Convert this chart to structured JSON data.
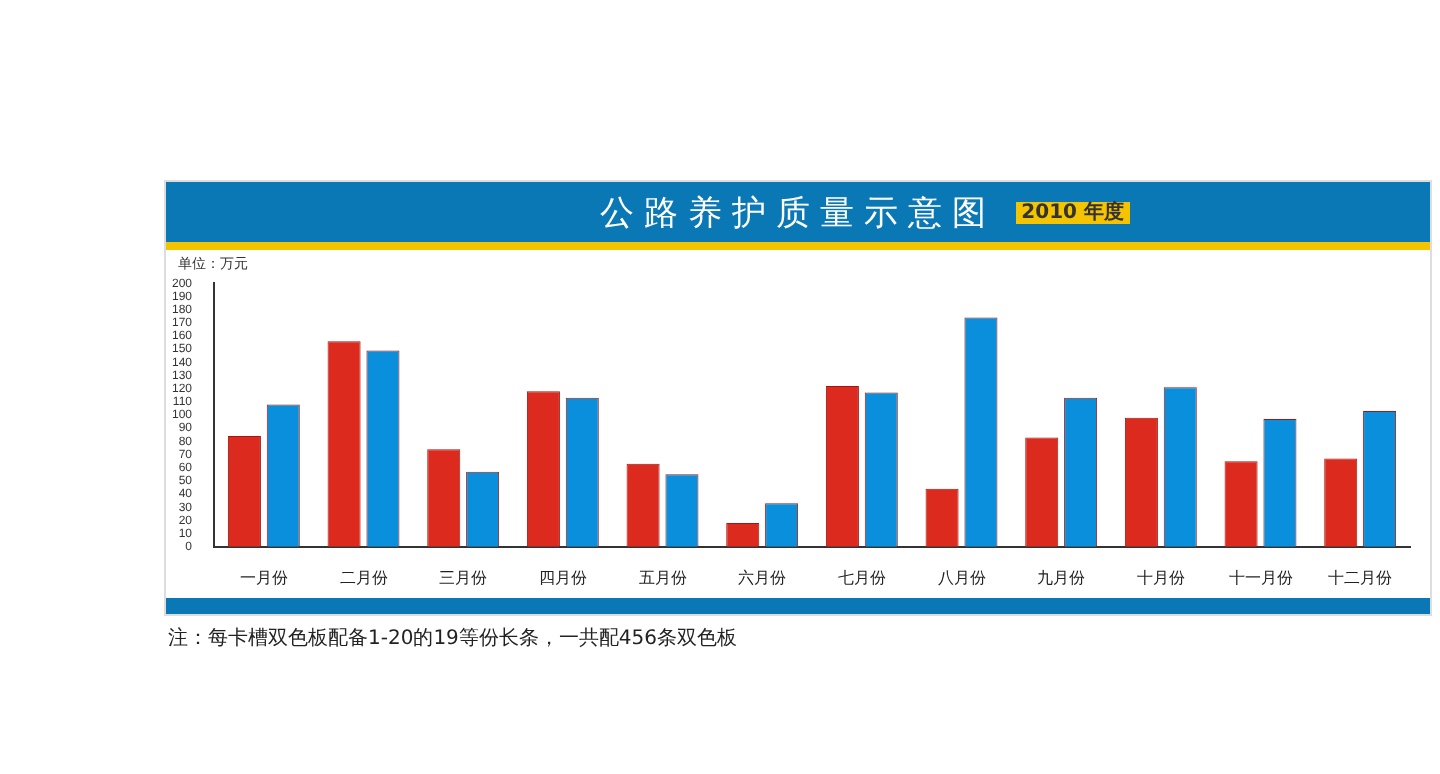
{
  "chart_data": {
    "type": "bar",
    "title": "公路养护质量示意图",
    "subtitle": "2010 年度",
    "ylabel": "单位：万元",
    "categories": [
      "一月份",
      "二月份",
      "三月份",
      "四月份",
      "五月份",
      "六月份",
      "七月份",
      "八月份",
      "九月份",
      "十月份",
      "十一月份",
      "十二月份"
    ],
    "series": [
      {
        "color": "#dc2a1e",
        "values": [
          84,
          156,
          74,
          118,
          63,
          18,
          122,
          44,
          83,
          98,
          65,
          67
        ]
      },
      {
        "color": "#0a8fdc",
        "values": [
          108,
          149,
          57,
          113,
          55,
          33,
          117,
          174,
          113,
          121,
          97,
          103
        ]
      }
    ],
    "ylim": [
      0,
      200
    ],
    "yticks": [
      0,
      10,
      20,
      30,
      40,
      50,
      60,
      70,
      80,
      90,
      100,
      110,
      120,
      130,
      140,
      150,
      160,
      170,
      180,
      190,
      200
    ],
    "grid": false,
    "legend": false,
    "annotations": [
      "注：每卡槽双色板配备1-20的19等份长条，一共配456条双色板"
    ]
  }
}
